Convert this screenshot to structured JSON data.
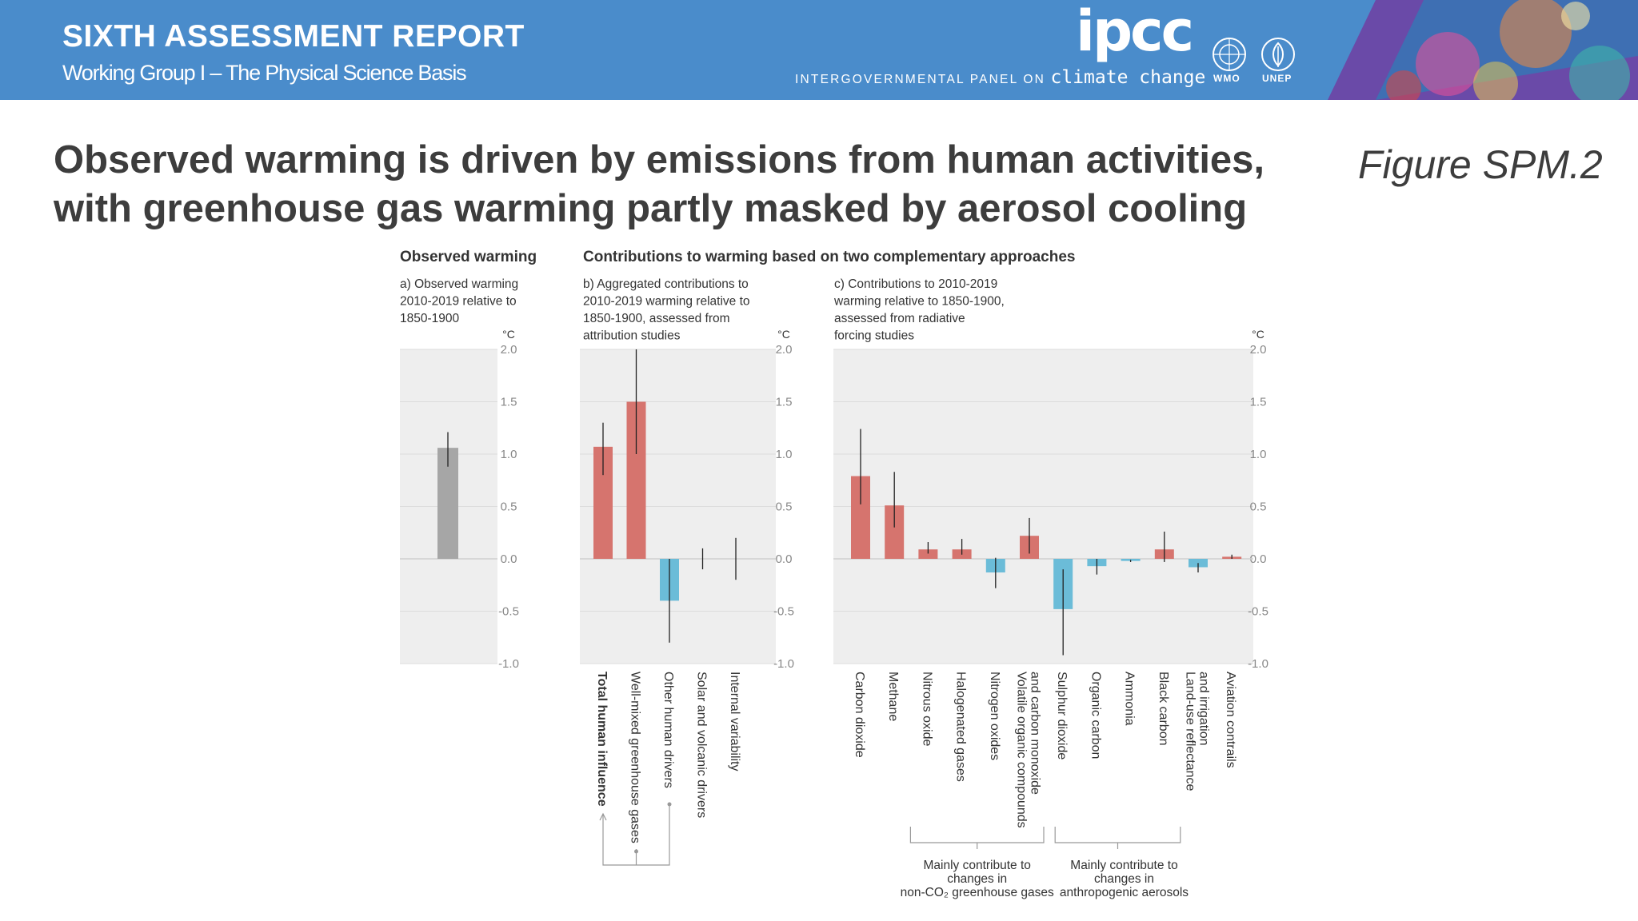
{
  "header": {
    "report_title": "SIXTH ASSESSMENT REPORT",
    "report_subtitle": "Working Group I – The Physical Science Basis",
    "org_acronym": "ipcc",
    "org_name_prefix": "INTERGOVERNMENTAL PANEL ON",
    "org_name_suffix": "climate change",
    "partner_logos": [
      "WMO",
      "UNEP"
    ],
    "colors": {
      "banner": "#4a8ccb"
    }
  },
  "slide": {
    "headline_line1": "Observed warming is driven by emissions from human activities,",
    "headline_line2": "with greenhouse gas warming partly masked by aerosol cooling",
    "figure_label": "Figure SPM.2"
  },
  "chart_data": {
    "section_titles": {
      "observed": "Observed warming",
      "contributions": "Contributions to warming based on two complementary approaches"
    },
    "unit": "°C",
    "ylim": [
      -1.0,
      2.0
    ],
    "yticks": [
      "2.0",
      "1.5",
      "1.0",
      "0.5",
      "0.0",
      "-0.5",
      "-1.0"
    ],
    "colors": {
      "warming": "#d6746e",
      "cooling": "#6bbcd8",
      "observed": "#a6a6a6",
      "background": "#eeeeee"
    },
    "panels": [
      {
        "type": "bar",
        "title_lines": [
          "a) Observed warming",
          "2010-2019 relative to",
          "1850-1900"
        ],
        "categories": [
          ""
        ],
        "values": [
          1.06
        ],
        "error_low": [
          0.88
        ],
        "error_high": [
          1.21
        ],
        "bar_colors": [
          "observed"
        ]
      },
      {
        "type": "bar",
        "title_lines": [
          "b) Aggregated contributions to",
          "2010-2019 warming relative to",
          "1850-1900, assessed from",
          "attribution studies"
        ],
        "categories": [
          "Total human influence",
          "Well-mixed greenhouse gases",
          "Other human drivers",
          "Solar and volcanic drivers",
          "Internal variability"
        ],
        "values": [
          1.07,
          1.5,
          -0.4,
          0.0,
          0.0
        ],
        "error_low": [
          0.8,
          1.0,
          -0.8,
          -0.1,
          -0.2
        ],
        "error_high": [
          1.3,
          2.0,
          0.0,
          0.1,
          0.2
        ],
        "bar_colors": [
          "warming",
          "warming",
          "cooling",
          "none",
          "none"
        ],
        "bold_first_label": true
      },
      {
        "type": "bar",
        "title_lines": [
          "c) Contributions to 2010-2019",
          "warming relative to 1850-1900,",
          "assessed from radiative",
          "forcing studies"
        ],
        "categories": [
          "Carbon dioxide",
          "Methane",
          "Nitrous oxide",
          "Halogenated gases",
          "Nitrogen oxides",
          "Volatile organic compounds|and carbon monoxide",
          "Sulphur dioxide",
          "Organic carbon",
          "Ammonia",
          "Black carbon",
          "Land-use reflectance|and irrigation",
          "Aviation contrails"
        ],
        "values": [
          0.79,
          0.51,
          0.09,
          0.09,
          -0.13,
          0.22,
          -0.48,
          -0.07,
          -0.02,
          0.09,
          -0.08,
          0.02
        ],
        "error_low": [
          0.52,
          0.3,
          0.05,
          0.04,
          -0.28,
          0.05,
          -0.92,
          -0.15,
          -0.03,
          -0.03,
          -0.13,
          0.0
        ],
        "error_high": [
          1.24,
          0.83,
          0.16,
          0.19,
          0.01,
          0.39,
          -0.1,
          0.0,
          -0.01,
          0.26,
          -0.04,
          0.04
        ],
        "bar_colors": [
          "warming",
          "warming",
          "warming",
          "warming",
          "cooling",
          "warming",
          "cooling",
          "cooling",
          "cooling",
          "warming",
          "cooling",
          "warming"
        ]
      }
    ],
    "annotations": {
      "nonco2": [
        "Mainly contribute to",
        "changes in",
        "non-CO₂ greenhouse gases"
      ],
      "aerosols": [
        "Mainly contribute to",
        "changes in",
        "anthropogenic aerosols"
      ]
    }
  }
}
